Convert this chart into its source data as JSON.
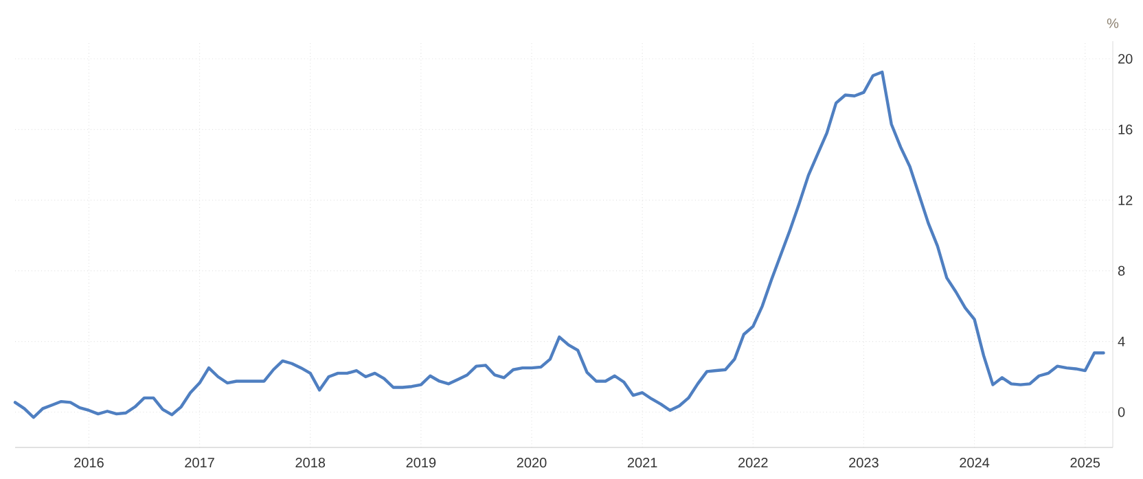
{
  "chart_data": {
    "type": "line",
    "ylabel": "%",
    "x": [
      "2015-05",
      "2015-06",
      "2015-07",
      "2015-08",
      "2015-09",
      "2015-10",
      "2015-11",
      "2015-12",
      "2016-01",
      "2016-02",
      "2016-03",
      "2016-04",
      "2016-05",
      "2016-06",
      "2016-07",
      "2016-08",
      "2016-09",
      "2016-10",
      "2016-11",
      "2016-12",
      "2017-01",
      "2017-02",
      "2017-03",
      "2017-04",
      "2017-05",
      "2017-06",
      "2017-07",
      "2017-08",
      "2017-09",
      "2017-10",
      "2017-11",
      "2017-12",
      "2018-01",
      "2018-02",
      "2018-03",
      "2018-04",
      "2018-05",
      "2018-06",
      "2018-07",
      "2018-08",
      "2018-09",
      "2018-10",
      "2018-11",
      "2018-12",
      "2019-01",
      "2019-02",
      "2019-03",
      "2019-04",
      "2019-05",
      "2019-06",
      "2019-07",
      "2019-08",
      "2019-09",
      "2019-10",
      "2019-11",
      "2019-12",
      "2020-01",
      "2020-02",
      "2020-03",
      "2020-04",
      "2020-05",
      "2020-06",
      "2020-07",
      "2020-08",
      "2020-09",
      "2020-10",
      "2020-11",
      "2020-12",
      "2021-01",
      "2021-02",
      "2021-03",
      "2021-04",
      "2021-05",
      "2021-06",
      "2021-07",
      "2021-08",
      "2021-09",
      "2021-10",
      "2021-11",
      "2021-12",
      "2022-01",
      "2022-02",
      "2022-03",
      "2022-04",
      "2022-05",
      "2022-06",
      "2022-07",
      "2022-08",
      "2022-09",
      "2022-10",
      "2022-11",
      "2022-12",
      "2023-01",
      "2023-02",
      "2023-03",
      "2023-04",
      "2023-05",
      "2023-06",
      "2023-07",
      "2023-08",
      "2023-09",
      "2023-10",
      "2023-11",
      "2023-12",
      "2024-01",
      "2024-02",
      "2024-03",
      "2024-04",
      "2024-05",
      "2024-06",
      "2024-07",
      "2024-08",
      "2024-09",
      "2024-10",
      "2024-11",
      "2024-12",
      "2025-01",
      "2025-02",
      "2025-03"
    ],
    "series": [
      {
        "color": "#4f7fc1",
        "values": [
          0.55,
          0.2,
          -0.3,
          0.2,
          0.4,
          0.6,
          0.55,
          0.25,
          0.1,
          -0.1,
          0.05,
          -0.1,
          -0.05,
          0.3,
          0.8,
          0.8,
          0.15,
          -0.15,
          0.3,
          1.1,
          1.65,
          2.5,
          2.0,
          1.65,
          1.75,
          1.75,
          1.75,
          1.75,
          2.4,
          2.9,
          2.75,
          2.5,
          2.2,
          1.25,
          2.0,
          2.2,
          2.2,
          2.35,
          2.0,
          2.2,
          1.9,
          1.4,
          1.4,
          1.45,
          1.55,
          2.05,
          1.75,
          1.6,
          1.85,
          2.1,
          2.6,
          2.65,
          2.1,
          1.95,
          2.4,
          2.5,
          2.5,
          2.55,
          3.0,
          4.25,
          3.8,
          3.5,
          2.25,
          1.75,
          1.75,
          2.05,
          1.7,
          0.95,
          1.1,
          0.75,
          0.45,
          0.1,
          0.35,
          0.8,
          1.6,
          2.3,
          2.35,
          2.4,
          3.0,
          4.4,
          4.85,
          6.0,
          7.5,
          8.9,
          10.3,
          11.8,
          13.4,
          14.6,
          15.8,
          17.5,
          17.95,
          17.9,
          18.1,
          19.05,
          19.25,
          16.3,
          15.0,
          13.9,
          12.3,
          10.7,
          9.4,
          7.6,
          6.8,
          5.9,
          5.25,
          3.2,
          1.55,
          1.95,
          1.6,
          1.55,
          1.6,
          2.05,
          2.2,
          2.6,
          2.5,
          2.45,
          2.35,
          3.35,
          3.35
        ]
      }
    ],
    "xlim": [
      "2015-05",
      "2025-04"
    ],
    "xticks": [
      "2016",
      "2017",
      "2018",
      "2019",
      "2020",
      "2021",
      "2022",
      "2023",
      "2024",
      "2025"
    ],
    "ylim": [
      -2,
      21
    ],
    "yticks": [
      0,
      4,
      8,
      12,
      16,
      20
    ],
    "grid": true
  }
}
